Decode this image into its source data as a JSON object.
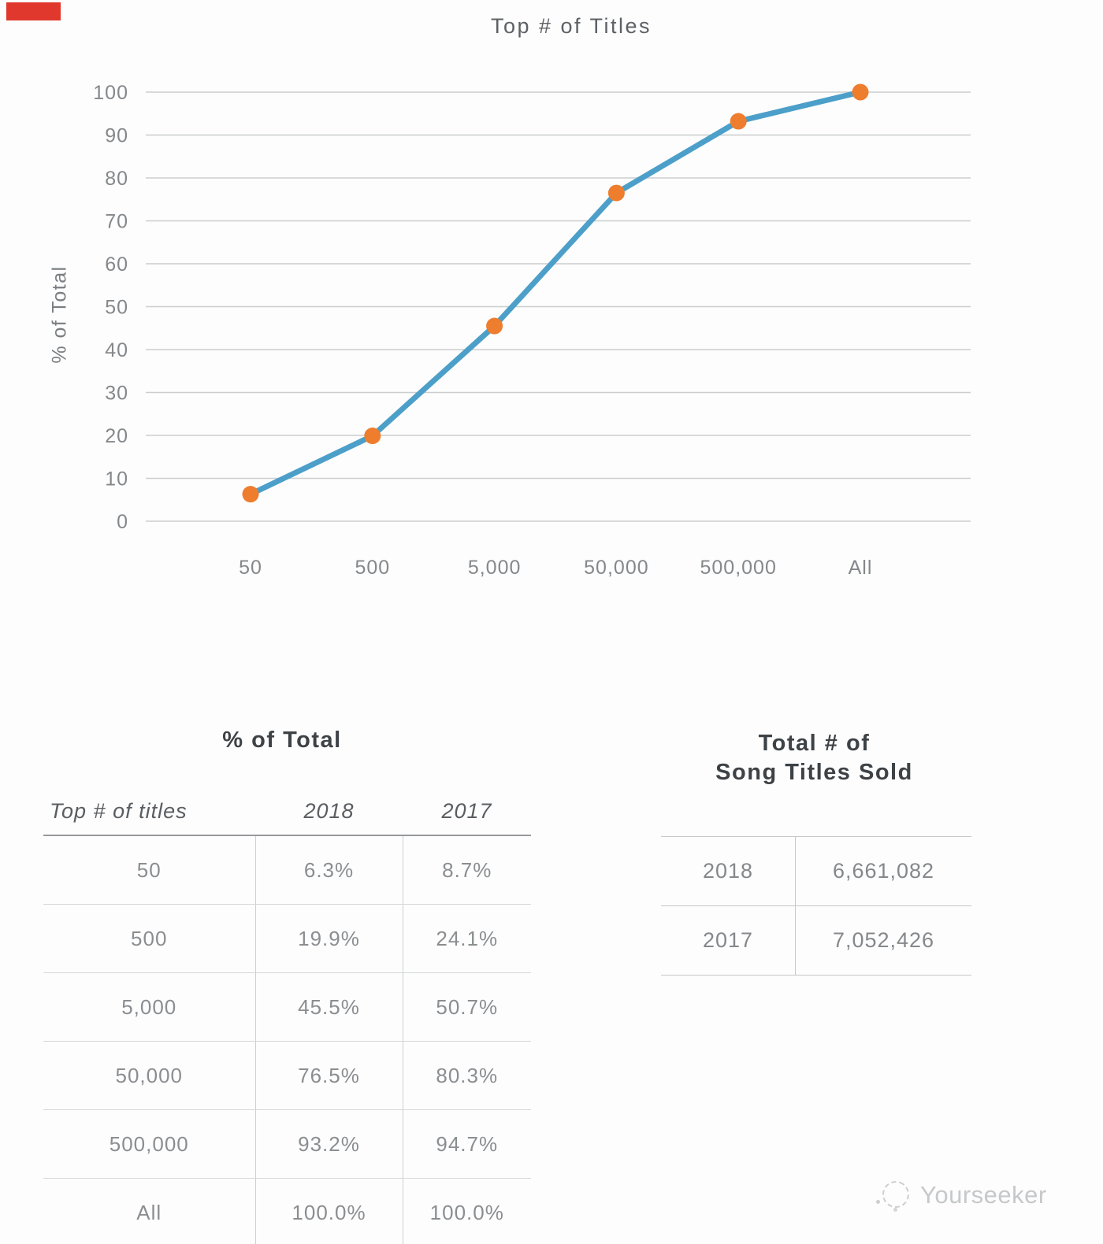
{
  "corner_mark_color": "#e0382d",
  "chart_data": {
    "type": "line",
    "title": "Top # of Titles",
    "xlabel": "",
    "ylabel": "% of Total",
    "categories": [
      "50",
      "500",
      "5,000",
      "50,000",
      "500,000",
      "All"
    ],
    "series": [
      {
        "name": "2018",
        "values": [
          6.3,
          19.9,
          45.5,
          76.5,
          93.2,
          100.0
        ]
      }
    ],
    "ylim": [
      0,
      100
    ],
    "yticks": [
      0,
      10,
      20,
      30,
      40,
      50,
      60,
      70,
      80,
      90,
      100
    ],
    "grid": true,
    "legend": "none",
    "line_color": "#4C9FC9",
    "marker_color": "#EE7D2E"
  },
  "pct_table": {
    "title": "% of Total",
    "columns": [
      "Top # of titles",
      "2018",
      "2017"
    ],
    "rows": [
      [
        "50",
        "6.3%",
        "8.7%"
      ],
      [
        "500",
        "19.9%",
        "24.1%"
      ],
      [
        "5,000",
        "45.5%",
        "50.7%"
      ],
      [
        "50,000",
        "76.5%",
        "80.3%"
      ],
      [
        "500,000",
        "93.2%",
        "94.7%"
      ],
      [
        "All",
        "100.0%",
        "100.0%"
      ]
    ]
  },
  "totals_table": {
    "title_line1": "Total # of",
    "title_line2": "Song Titles Sold",
    "rows": [
      [
        "2018",
        "6,661,082"
      ],
      [
        "2017",
        "7,052,426"
      ]
    ]
  },
  "watermark": {
    "label": "Yourseeker"
  }
}
